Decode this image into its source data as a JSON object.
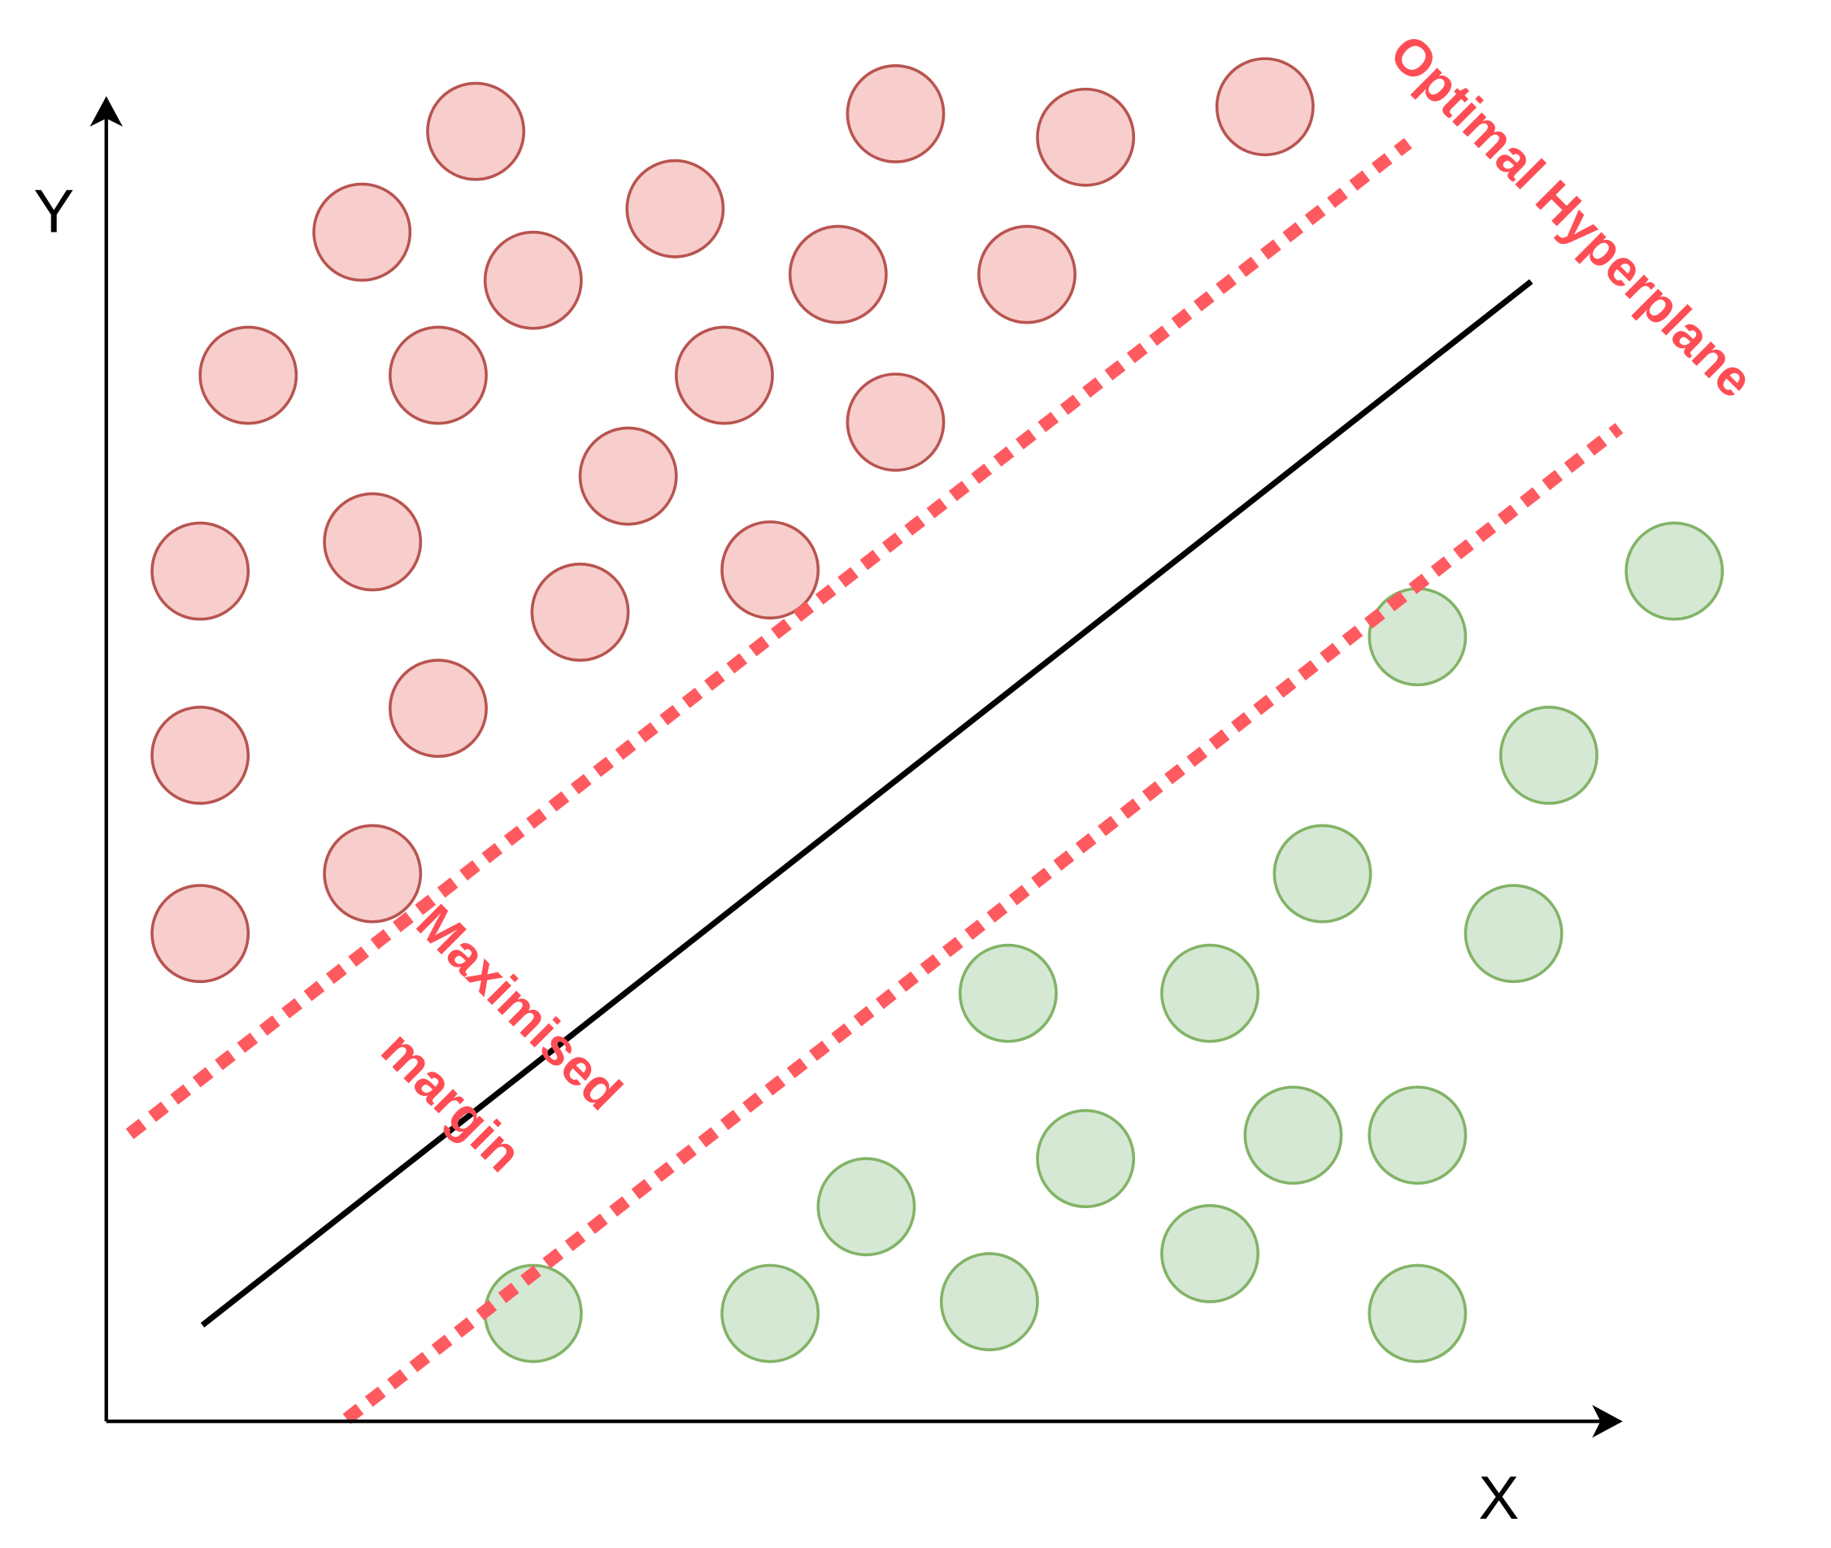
{
  "axes": {
    "y_label": "Y",
    "x_label": "X"
  },
  "annotations": {
    "hyperplane": "Optimal Hyperplane",
    "margin_line1": "Maximised",
    "margin_line2": "margin"
  }
}
